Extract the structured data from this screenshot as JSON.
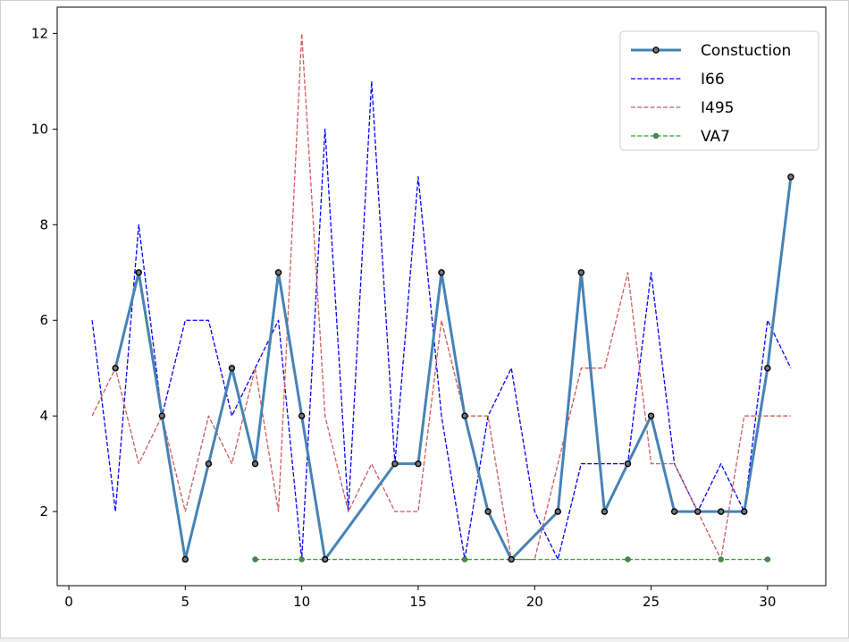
{
  "chart_data": {
    "type": "line",
    "title": "",
    "xlabel": "",
    "ylabel": "",
    "xlim": [
      -0.5,
      32.5
    ],
    "ylim": [
      0.45,
      12.55
    ],
    "xticks": [
      0,
      5,
      10,
      15,
      20,
      25,
      30
    ],
    "yticks": [
      2,
      4,
      6,
      8,
      10,
      12
    ],
    "grid": false,
    "legend": "top-right",
    "series": [
      {
        "name": "Constuction",
        "color": "#4682b4",
        "style": "solid",
        "marker": "circle",
        "x": [
          2,
          3,
          4,
          5,
          6,
          7,
          8,
          9,
          10,
          11,
          14,
          15,
          16,
          17,
          18,
          19,
          21,
          22,
          23,
          24,
          25,
          26,
          27,
          28,
          29,
          30,
          31
        ],
        "y": [
          5,
          7,
          4,
          1,
          3,
          5,
          3,
          7,
          4,
          1,
          3,
          3,
          7,
          4,
          2,
          1,
          2,
          7,
          2,
          3,
          4,
          2,
          2,
          2,
          2,
          5,
          9
        ]
      },
      {
        "name": "I66",
        "color": "#0000ff",
        "style": "dashed",
        "marker": "none",
        "x": [
          1,
          2,
          3,
          4,
          5,
          6,
          7,
          8,
          9,
          10,
          11,
          12,
          13,
          14,
          15,
          16,
          17,
          18,
          19,
          20,
          21,
          22,
          23,
          24,
          25,
          26,
          27,
          28,
          29,
          30,
          31
        ],
        "y": [
          6,
          2,
          8,
          4,
          6,
          6,
          4,
          5,
          6,
          1,
          10,
          2,
          11,
          3,
          9,
          4,
          1,
          4,
          5,
          2,
          1,
          3,
          3,
          3,
          7,
          3,
          2,
          3,
          2,
          6,
          5
        ]
      },
      {
        "name": "I495",
        "color": "#cd5c5c",
        "style": "dashed",
        "marker": "none",
        "x": [
          1,
          2,
          3,
          4,
          5,
          6,
          7,
          8,
          9,
          10,
          11,
          12,
          13,
          14,
          15,
          16,
          17,
          18,
          19,
          20,
          21,
          22,
          23,
          24,
          25,
          26,
          27,
          28,
          29,
          30,
          31
        ],
        "y": [
          4,
          5,
          3,
          4,
          2,
          4,
          3,
          5,
          2,
          12,
          4,
          2,
          3,
          2,
          2,
          6,
          4,
          4,
          1,
          1,
          3,
          5,
          5,
          7,
          3,
          3,
          2,
          1,
          4,
          4,
          4
        ]
      },
      {
        "name": "VA7",
        "color": "#2ca02c",
        "style": "dashed",
        "marker": "circle",
        "x": [
          8,
          10,
          11,
          17,
          19,
          24,
          28,
          30
        ],
        "y": [
          1,
          1,
          1,
          1,
          1,
          1,
          1,
          1
        ]
      }
    ]
  }
}
